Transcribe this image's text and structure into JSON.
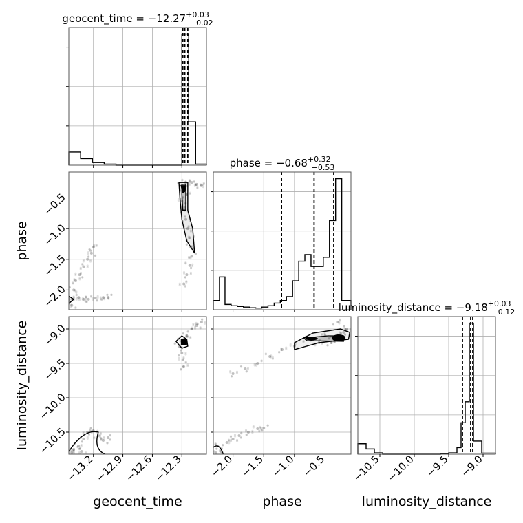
{
  "chart_data": {
    "type": "corner",
    "parameters": [
      {
        "name": "geocent_time",
        "range": [
          -13.45,
          -12.05
        ],
        "ticks": [
          -13.2,
          -12.9,
          -12.6,
          -12.3
        ],
        "tick_labels": [
          "−13.2",
          "−12.9",
          "−12.6",
          "−12.3"
        ],
        "title": {
          "base": "geocent_time = −12.27",
          "sup": "+0.03",
          "sub": "−0.02"
        },
        "quantiles": [
          -12.29,
          -12.27,
          -12.24
        ]
      },
      {
        "name": "phase",
        "range": [
          -2.32,
          -0.08
        ],
        "ticks": [
          -2.0,
          -1.5,
          -1.0,
          -0.5
        ],
        "tick_labels": [
          "−2.0",
          "−1.5",
          "−1.0",
          "−0.5"
        ],
        "title": {
          "base": "phase = −0.68",
          "sup": "+0.32",
          "sub": "−0.53"
        },
        "quantiles": [
          -1.21,
          -0.68,
          -0.36
        ]
      },
      {
        "name": "luminosity_distance",
        "range": [
          -10.82,
          -8.82
        ],
        "ticks": [
          -10.5,
          -10.0,
          -9.5,
          -9.0
        ],
        "tick_labels": [
          "−10.5",
          "−10.0",
          "−9.5",
          "−9.0"
        ],
        "title": {
          "base": "luminosity_distance = −9.18",
          "sup": "+0.03",
          "sub": "−0.12"
        },
        "quantiles": [
          -9.3,
          -9.18,
          -9.15
        ]
      }
    ],
    "histograms": [
      {
        "param": "geocent_time",
        "bins": [
          -13.45,
          -13.33,
          -13.21,
          -13.09,
          -12.97,
          -12.85,
          -12.73,
          -12.61,
          -12.49,
          -12.37,
          -12.3,
          -12.23,
          -12.16,
          -12.05
        ],
        "counts": [
          0.1,
          0.05,
          0.02,
          0.008,
          0.0,
          0.0,
          0.0,
          0.0,
          0.0,
          0.0,
          1.0,
          0.33,
          0.008
        ],
        "ylim": [
          0,
          1.05
        ]
      },
      {
        "param": "phase",
        "bins": [
          -2.32,
          -2.22,
          -2.13,
          -2.03,
          -1.93,
          -1.83,
          -1.73,
          -1.63,
          -1.53,
          -1.43,
          -1.33,
          -1.23,
          -1.13,
          -1.03,
          -0.93,
          -0.83,
          -0.73,
          -0.63,
          -0.53,
          -0.43,
          -0.33,
          -0.23,
          -0.08
        ],
        "counts": [
          0.07,
          0.25,
          0.04,
          0.03,
          0.025,
          0.02,
          0.015,
          0.012,
          0.02,
          0.03,
          0.05,
          0.07,
          0.1,
          0.22,
          0.37,
          0.42,
          0.33,
          0.33,
          0.4,
          0.68,
          1.0,
          0.07
        ],
        "ylim": [
          0,
          1.05
        ]
      },
      {
        "param": "luminosity_distance",
        "bins": [
          -10.82,
          -10.7,
          -10.58,
          -10.46,
          -10.34,
          -10.22,
          -10.1,
          -9.98,
          -9.86,
          -9.74,
          -9.62,
          -9.5,
          -9.38,
          -9.32,
          -9.26,
          -9.2,
          -9.14,
          -9.02,
          -8.82
        ],
        "counts": [
          0.08,
          0.04,
          0.01,
          0.0,
          0.0,
          0.0,
          0.0,
          0.0,
          0.0,
          0.0,
          0.005,
          0.01,
          0.05,
          0.24,
          0.4,
          1.0,
          0.1,
          0.008
        ],
        "ylim": [
          0,
          1.05
        ]
      }
    ],
    "scatter": [
      {
        "x": "geocent_time",
        "y": "phase",
        "points": [
          [
            -12.3,
            -0.3
          ],
          [
            -12.28,
            -0.35
          ],
          [
            -12.26,
            -0.25
          ],
          [
            -12.25,
            -0.45
          ],
          [
            -12.3,
            -0.55
          ],
          [
            -12.27,
            -0.7
          ],
          [
            -12.26,
            -0.85
          ],
          [
            -12.24,
            -1.0
          ],
          [
            -12.22,
            -1.15
          ],
          [
            -12.21,
            -1.3
          ],
          [
            -12.2,
            -1.45
          ],
          [
            -12.22,
            -1.6
          ],
          [
            -12.25,
            -1.75
          ],
          [
            -12.28,
            -1.9
          ],
          [
            -12.15,
            -0.28
          ],
          [
            -12.1,
            -0.3
          ],
          [
            -12.2,
            -0.25
          ],
          [
            -13.42,
            -2.15
          ],
          [
            -13.35,
            -2.12
          ],
          [
            -13.3,
            -2.15
          ],
          [
            -13.25,
            -2.15
          ],
          [
            -13.18,
            -2.13
          ],
          [
            -13.1,
            -2.12
          ],
          [
            -13.4,
            -2.0
          ],
          [
            -13.38,
            -1.85
          ],
          [
            -13.34,
            -1.75
          ],
          [
            -13.3,
            -1.62
          ],
          [
            -13.26,
            -1.5
          ],
          [
            -13.22,
            -1.4
          ],
          [
            -13.2,
            -1.3
          ],
          [
            -13.42,
            -2.25
          ],
          [
            -13.05,
            -2.12
          ]
        ]
      },
      {
        "x": "geocent_time",
        "y": "luminosity_distance",
        "points": [
          [
            -12.3,
            -9.18
          ],
          [
            -12.28,
            -9.15
          ],
          [
            -12.25,
            -9.1
          ],
          [
            -12.2,
            -9.0
          ],
          [
            -12.15,
            -8.95
          ],
          [
            -12.1,
            -8.9
          ],
          [
            -12.3,
            -9.35
          ],
          [
            -12.29,
            -9.45
          ],
          [
            -12.28,
            -9.55
          ],
          [
            -12.33,
            -9.25
          ],
          [
            -13.4,
            -10.75
          ],
          [
            -13.35,
            -10.7
          ],
          [
            -13.3,
            -10.6
          ],
          [
            -13.26,
            -10.5
          ],
          [
            -13.2,
            -10.48
          ],
          [
            -13.15,
            -10.55
          ],
          [
            -13.1,
            -10.62
          ],
          [
            -13.42,
            -10.8
          ],
          [
            -13.32,
            -10.78
          ],
          [
            -13.05,
            -10.58
          ]
        ]
      },
      {
        "x": "phase",
        "y": "luminosity_distance",
        "points": [
          [
            -0.35,
            -9.15
          ],
          [
            -0.3,
            -9.1
          ],
          [
            -0.25,
            -9.12
          ],
          [
            -0.4,
            -9.2
          ],
          [
            -0.5,
            -9.1
          ],
          [
            -0.6,
            -9.2
          ],
          [
            -0.8,
            -9.15
          ],
          [
            -1.0,
            -9.25
          ],
          [
            -1.2,
            -9.3
          ],
          [
            -1.4,
            -9.4
          ],
          [
            -1.6,
            -9.5
          ],
          [
            -1.8,
            -9.58
          ],
          [
            -2.0,
            -9.65
          ],
          [
            -0.2,
            -9.05
          ],
          [
            -0.15,
            -9.0
          ],
          [
            -0.3,
            -8.9
          ],
          [
            -2.25,
            -10.7
          ],
          [
            -2.1,
            -10.65
          ],
          [
            -2.0,
            -10.6
          ],
          [
            -1.9,
            -10.55
          ],
          [
            -1.75,
            -10.5
          ],
          [
            -1.6,
            -10.45
          ],
          [
            -1.5,
            -10.44
          ],
          [
            -2.2,
            -10.78
          ],
          [
            -2.28,
            -10.8
          ]
        ]
      }
    ]
  }
}
